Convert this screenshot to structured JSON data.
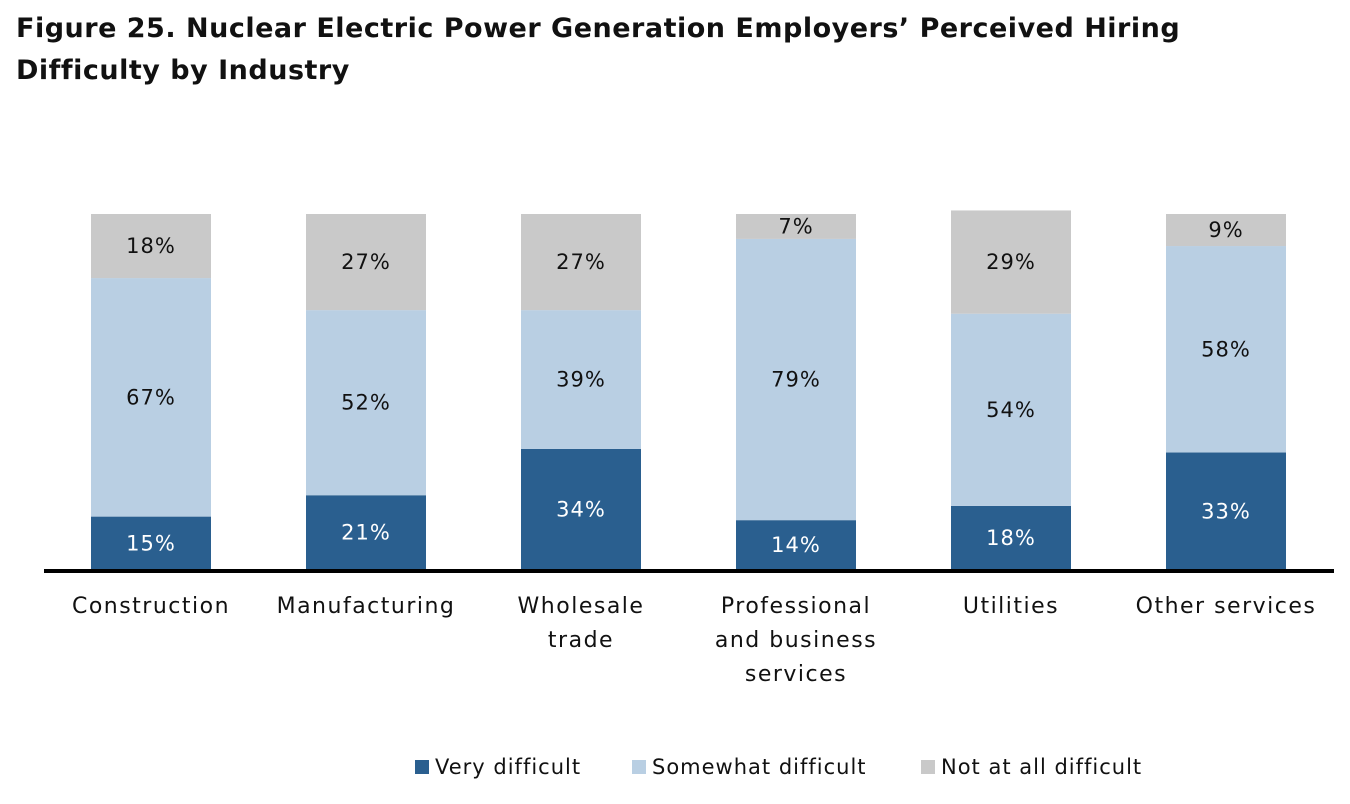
{
  "chart_data": {
    "type": "stacked_bar",
    "title": "Figure 25. Nuclear Electric Power Generation Employers’ Perceived Hiring Difficulty by Industry",
    "categories": [
      "Construction",
      "Manufacturing",
      "Wholesale trade",
      "Professional and business services",
      "Utilities",
      "Other services"
    ],
    "series": [
      {
        "name": "Very difficult",
        "color": "#2a5f8f",
        "values": [
          15,
          21,
          34,
          14,
          18,
          33
        ],
        "value_labels": [
          "15%",
          "21%",
          "34%",
          "14%",
          "18%",
          "33%"
        ]
      },
      {
        "name": "Somewhat difficult",
        "color": "#b9cfe3",
        "values": [
          67,
          52,
          39,
          79,
          54,
          58
        ],
        "value_labels": [
          "67%",
          "52%",
          "39%",
          "79%",
          "54%",
          "58%"
        ]
      },
      {
        "name": "Not at all difficult",
        "color": "#c9c9c9",
        "values": [
          18,
          27,
          27,
          7,
          29,
          9
        ],
        "value_labels": [
          "18%",
          "27%",
          "27%",
          "7%",
          "29%",
          "9%"
        ]
      }
    ],
    "ylim": [
      0,
      100
    ]
  }
}
